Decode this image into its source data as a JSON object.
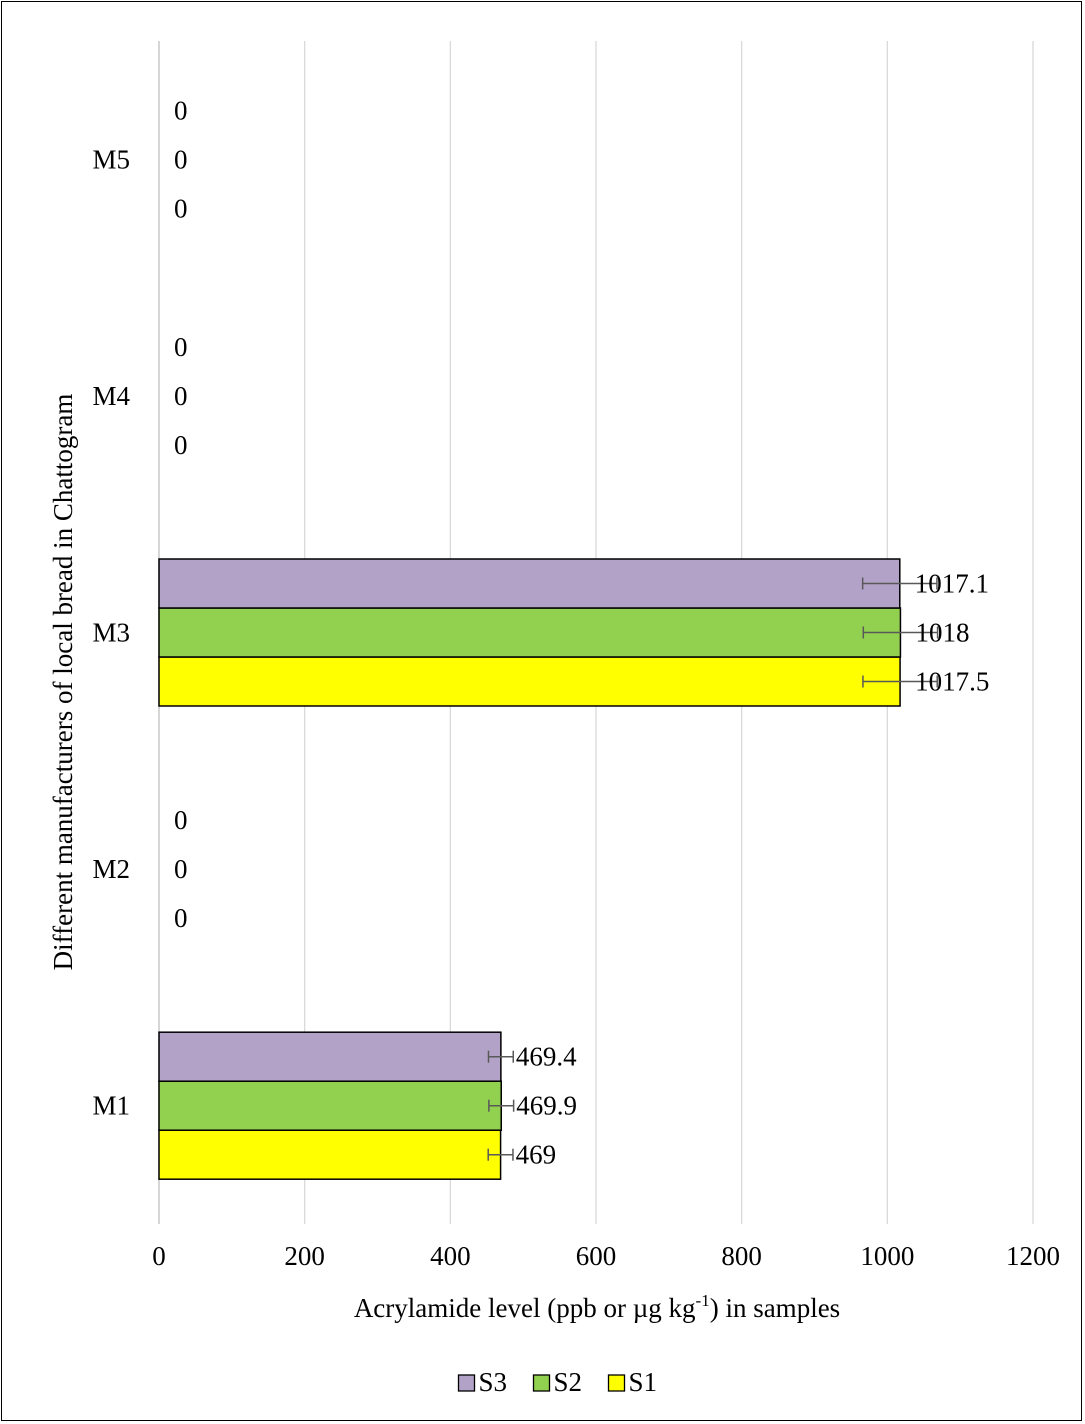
{
  "chart_data": {
    "type": "bar",
    "orientation": "horizontal",
    "categories": [
      "M1",
      "M2",
      "M3",
      "M4",
      "M5"
    ],
    "series": [
      {
        "name": "S1",
        "color": "#FFFF00",
        "values": [
          469,
          0,
          1017.5,
          0,
          0
        ],
        "labels": [
          "469",
          "0",
          "1017.5",
          "0",
          "0"
        ],
        "error": [
          17,
          0,
          51,
          0,
          0
        ]
      },
      {
        "name": "S2",
        "color": "#92D050",
        "values": [
          469.9,
          0,
          1018,
          0,
          0
        ],
        "labels": [
          "469.9",
          "0",
          "1018",
          "0",
          "0"
        ],
        "error": [
          17,
          0,
          51,
          0,
          0
        ]
      },
      {
        "name": "S3",
        "color": "#B3A2C7",
        "values": [
          469.4,
          0,
          1017.1,
          0,
          0
        ],
        "labels": [
          "469.4",
          "0",
          "1017.1",
          "0",
          "0"
        ],
        "error": [
          17,
          0,
          51,
          0,
          0
        ]
      }
    ],
    "legend_order": [
      "S3",
      "S2",
      "S1"
    ],
    "legend_position": "bottom",
    "xlabel": "Acrylamide level (ppb or µg kg",
    "xlabel_sup": "-1",
    "xlabel_suffix": ") in samples",
    "ylabel": "Different manufacturers of local bread in Chattogram",
    "xlim": [
      0,
      1200
    ],
    "xticks": [
      0,
      200,
      400,
      600,
      800,
      1000,
      1200
    ],
    "grid": "vertical"
  }
}
